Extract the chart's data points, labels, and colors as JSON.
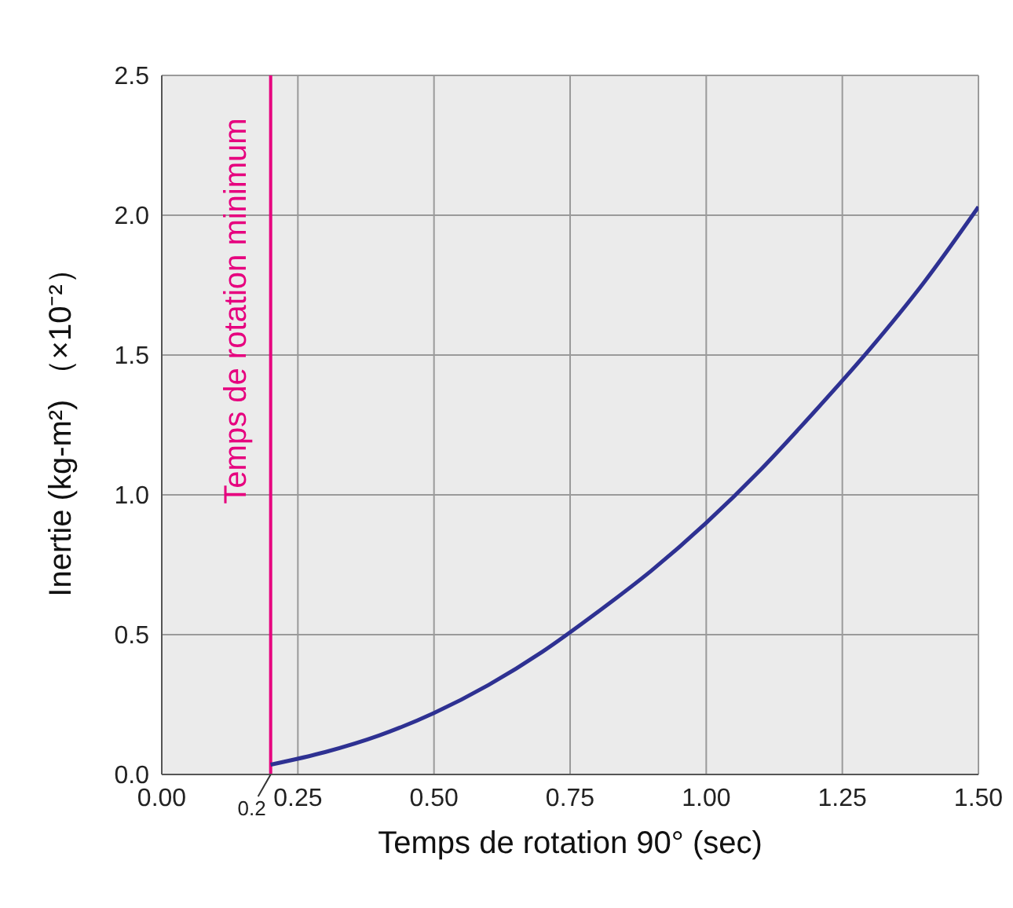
{
  "chart_data": {
    "type": "line",
    "xlabel": "Temps de rotation 90° (sec)",
    "ylabel": "Inertie (kg-m²) （×10⁻²）",
    "xlim": [
      0,
      1.5
    ],
    "ylim": [
      0,
      2.5
    ],
    "xticks": [
      {
        "value": 0,
        "label": "0.00"
      },
      {
        "value": 0.25,
        "label": "0.25"
      },
      {
        "value": 0.5,
        "label": "0.50"
      },
      {
        "value": 0.75,
        "label": "0.75"
      },
      {
        "value": 1,
        "label": "1.00"
      },
      {
        "value": 1.25,
        "label": "1.25"
      },
      {
        "value": 1.5,
        "label": "1.50"
      }
    ],
    "yticks": [
      {
        "value": 0,
        "label": "0.0"
      },
      {
        "value": 0.5,
        "label": "0.5"
      },
      {
        "value": 1,
        "label": "1.0"
      },
      {
        "value": 1.5,
        "label": "1.5"
      },
      {
        "value": 2,
        "label": "2.0"
      },
      {
        "value": 2.5,
        "label": "2.5"
      }
    ],
    "grid": true,
    "marker": "none",
    "line_style": "solid",
    "series": [
      {
        "color": "#2e3192",
        "x": [
          0.2,
          0.3,
          0.4,
          0.5,
          0.6,
          0.7,
          0.8,
          0.9,
          1.0,
          1.1,
          1.2,
          1.3,
          1.4,
          1.5
        ],
        "values": [
          0.035,
          0.08,
          0.14,
          0.22,
          0.32,
          0.44,
          0.58,
          0.73,
          0.9,
          1.09,
          1.3,
          1.52,
          1.76,
          2.03
        ]
      }
    ],
    "annotations": [
      {
        "text": "0.2",
        "x": 0.2,
        "y": 0
      }
    ],
    "ref_lines": [
      {
        "axis": "x",
        "value": 0.2,
        "label": "Temps de rotation minimum",
        "color": "#e6007e"
      }
    ]
  }
}
